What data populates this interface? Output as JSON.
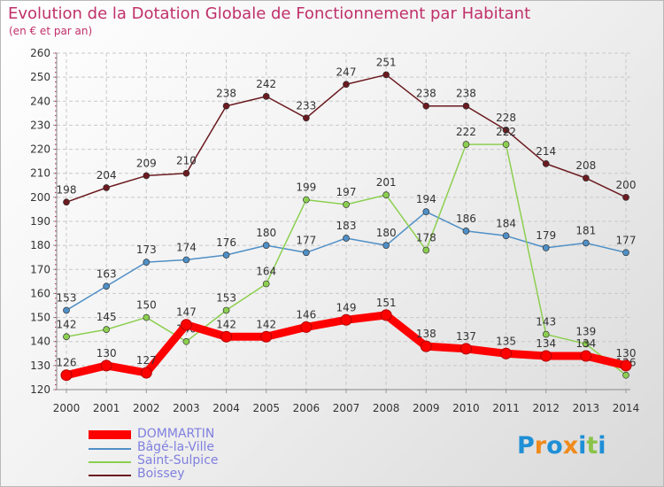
{
  "title": "Evolution de la Dotation Globale de Fonctionnement par Habitant",
  "subtitle": "(en € et par an)",
  "logo": {
    "letters": [
      "P",
      "r",
      "o",
      "x",
      "i",
      "t",
      "i"
    ],
    "colors": [
      "#1f8fd6",
      "#f08a1c",
      "#1f8fd6",
      "#f08a1c",
      "#1f8fd6",
      "#8bc34a",
      "#1f8fd6"
    ]
  },
  "chart_data": {
    "type": "line",
    "title": "Evolution de la Dotation Globale de Fonctionnement par Habitant",
    "subtitle": "(en € et par an)",
    "x": [
      "2000",
      "2001",
      "2002",
      "2003",
      "2004",
      "2005",
      "2006",
      "2007",
      "2008",
      "2009",
      "2010",
      "2011",
      "2012",
      "2013",
      "2014"
    ],
    "yticks": [
      "120",
      "130",
      "140",
      "150",
      "160",
      "170",
      "180",
      "190",
      "200",
      "210",
      "220",
      "230",
      "240",
      "250",
      "260"
    ],
    "ylim": [
      120,
      260
    ],
    "grid": true,
    "legend_position": "bottom-left",
    "series": [
      {
        "name": "Boissey",
        "color": "#6b1a1f",
        "values": [
          198,
          204,
          209,
          210,
          238,
          242,
          233,
          247,
          251,
          238,
          238,
          228,
          214,
          208,
          200
        ],
        "labels": [
          "198",
          "204",
          "209",
          "210",
          "238",
          "242",
          "233",
          "247",
          "251",
          "238",
          "238",
          "228",
          "214",
          "208",
          "200"
        ]
      },
      {
        "name": "Bâgé-la-Ville",
        "color": "#4f8fc6",
        "values": [
          153,
          163,
          173,
          174,
          176,
          180,
          177,
          183,
          180,
          194,
          186,
          184,
          179,
          181,
          177
        ],
        "labels": [
          "153",
          "163",
          "173",
          "174",
          "176",
          "180",
          "177",
          "183",
          "180",
          "194",
          "186",
          "184",
          "179",
          "181",
          "177"
        ]
      },
      {
        "name": "Saint-Sulpice",
        "color": "#8ccf50",
        "values": [
          142,
          145,
          150,
          140,
          153,
          164,
          199,
          197,
          201,
          178,
          222,
          222,
          143,
          139,
          126
        ],
        "labels": [
          "142",
          "145",
          "150",
          "140",
          "153",
          "164",
          "199",
          "197",
          "201",
          "178",
          "222",
          "222",
          "143",
          "139",
          "126"
        ]
      },
      {
        "name": "DOMMARTIN",
        "color": "#ff0000",
        "values": [
          126,
          130,
          127,
          147,
          142,
          142,
          146,
          149,
          151,
          138,
          137,
          135,
          134,
          134,
          130
        ],
        "labels": [
          "126",
          "130",
          "127",
          "147",
          "142",
          "142",
          "146",
          "149",
          "151",
          "138",
          "137",
          "135",
          "134",
          "134",
          "130"
        ]
      }
    ],
    "legend": [
      "DOMMARTIN",
      "Bâgé-la-Ville",
      "Saint-Sulpice",
      "Boissey"
    ]
  }
}
